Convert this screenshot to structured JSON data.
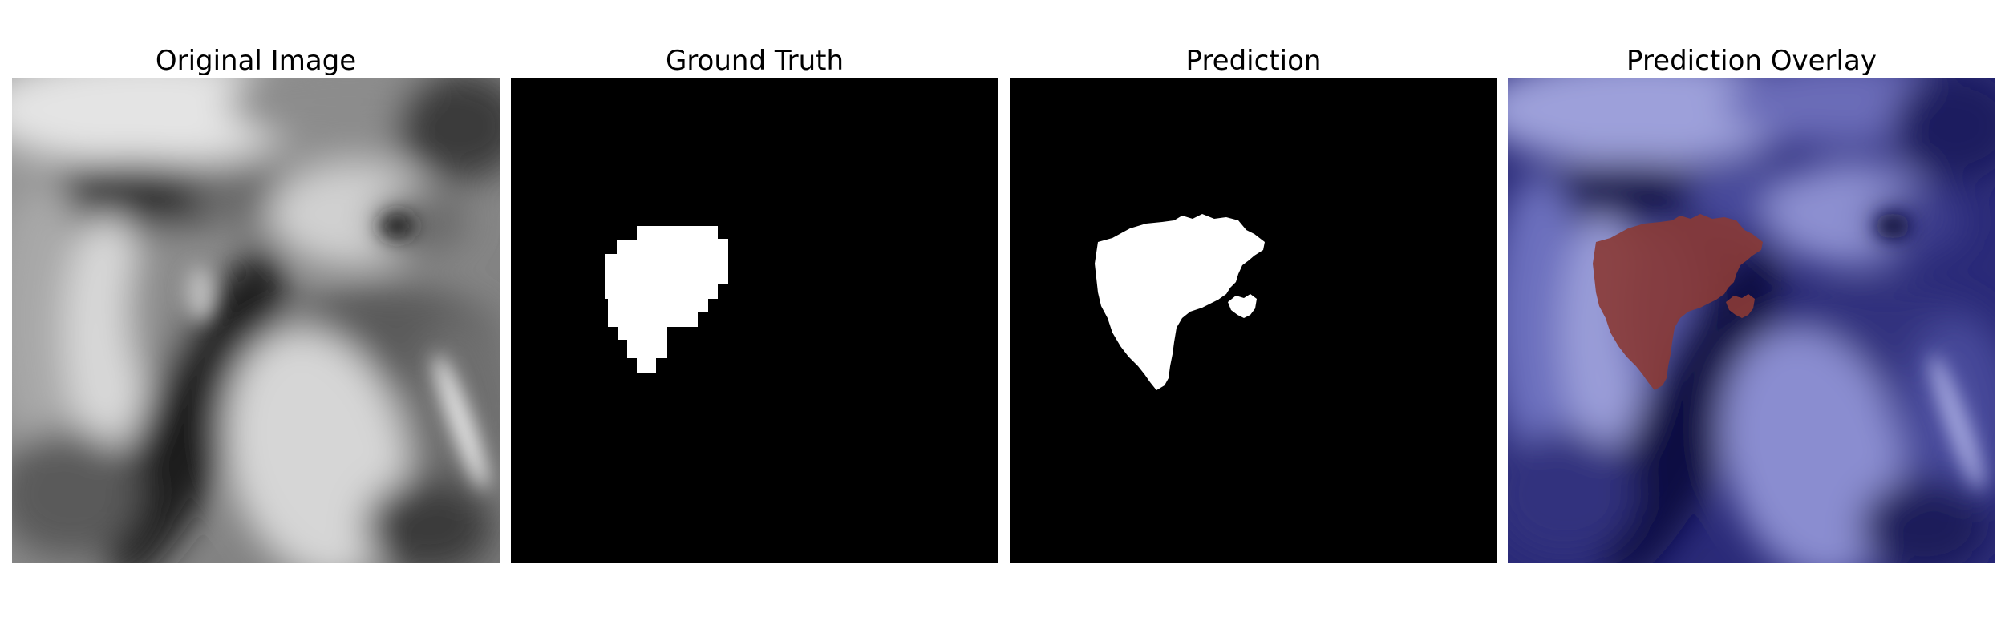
{
  "figure": {
    "panels": [
      {
        "title": "Original Image"
      },
      {
        "title": "Ground Truth"
      },
      {
        "title": "Prediction"
      },
      {
        "title": "Prediction Overlay"
      }
    ]
  },
  "colors": {
    "background": "#ffffff",
    "mask_fill": "#ffffff",
    "mask_background": "#000000",
    "overlay_base": "#0a0a45",
    "overlay_light": "#8a8dd2",
    "overlay_mask": "#8a3a35"
  }
}
